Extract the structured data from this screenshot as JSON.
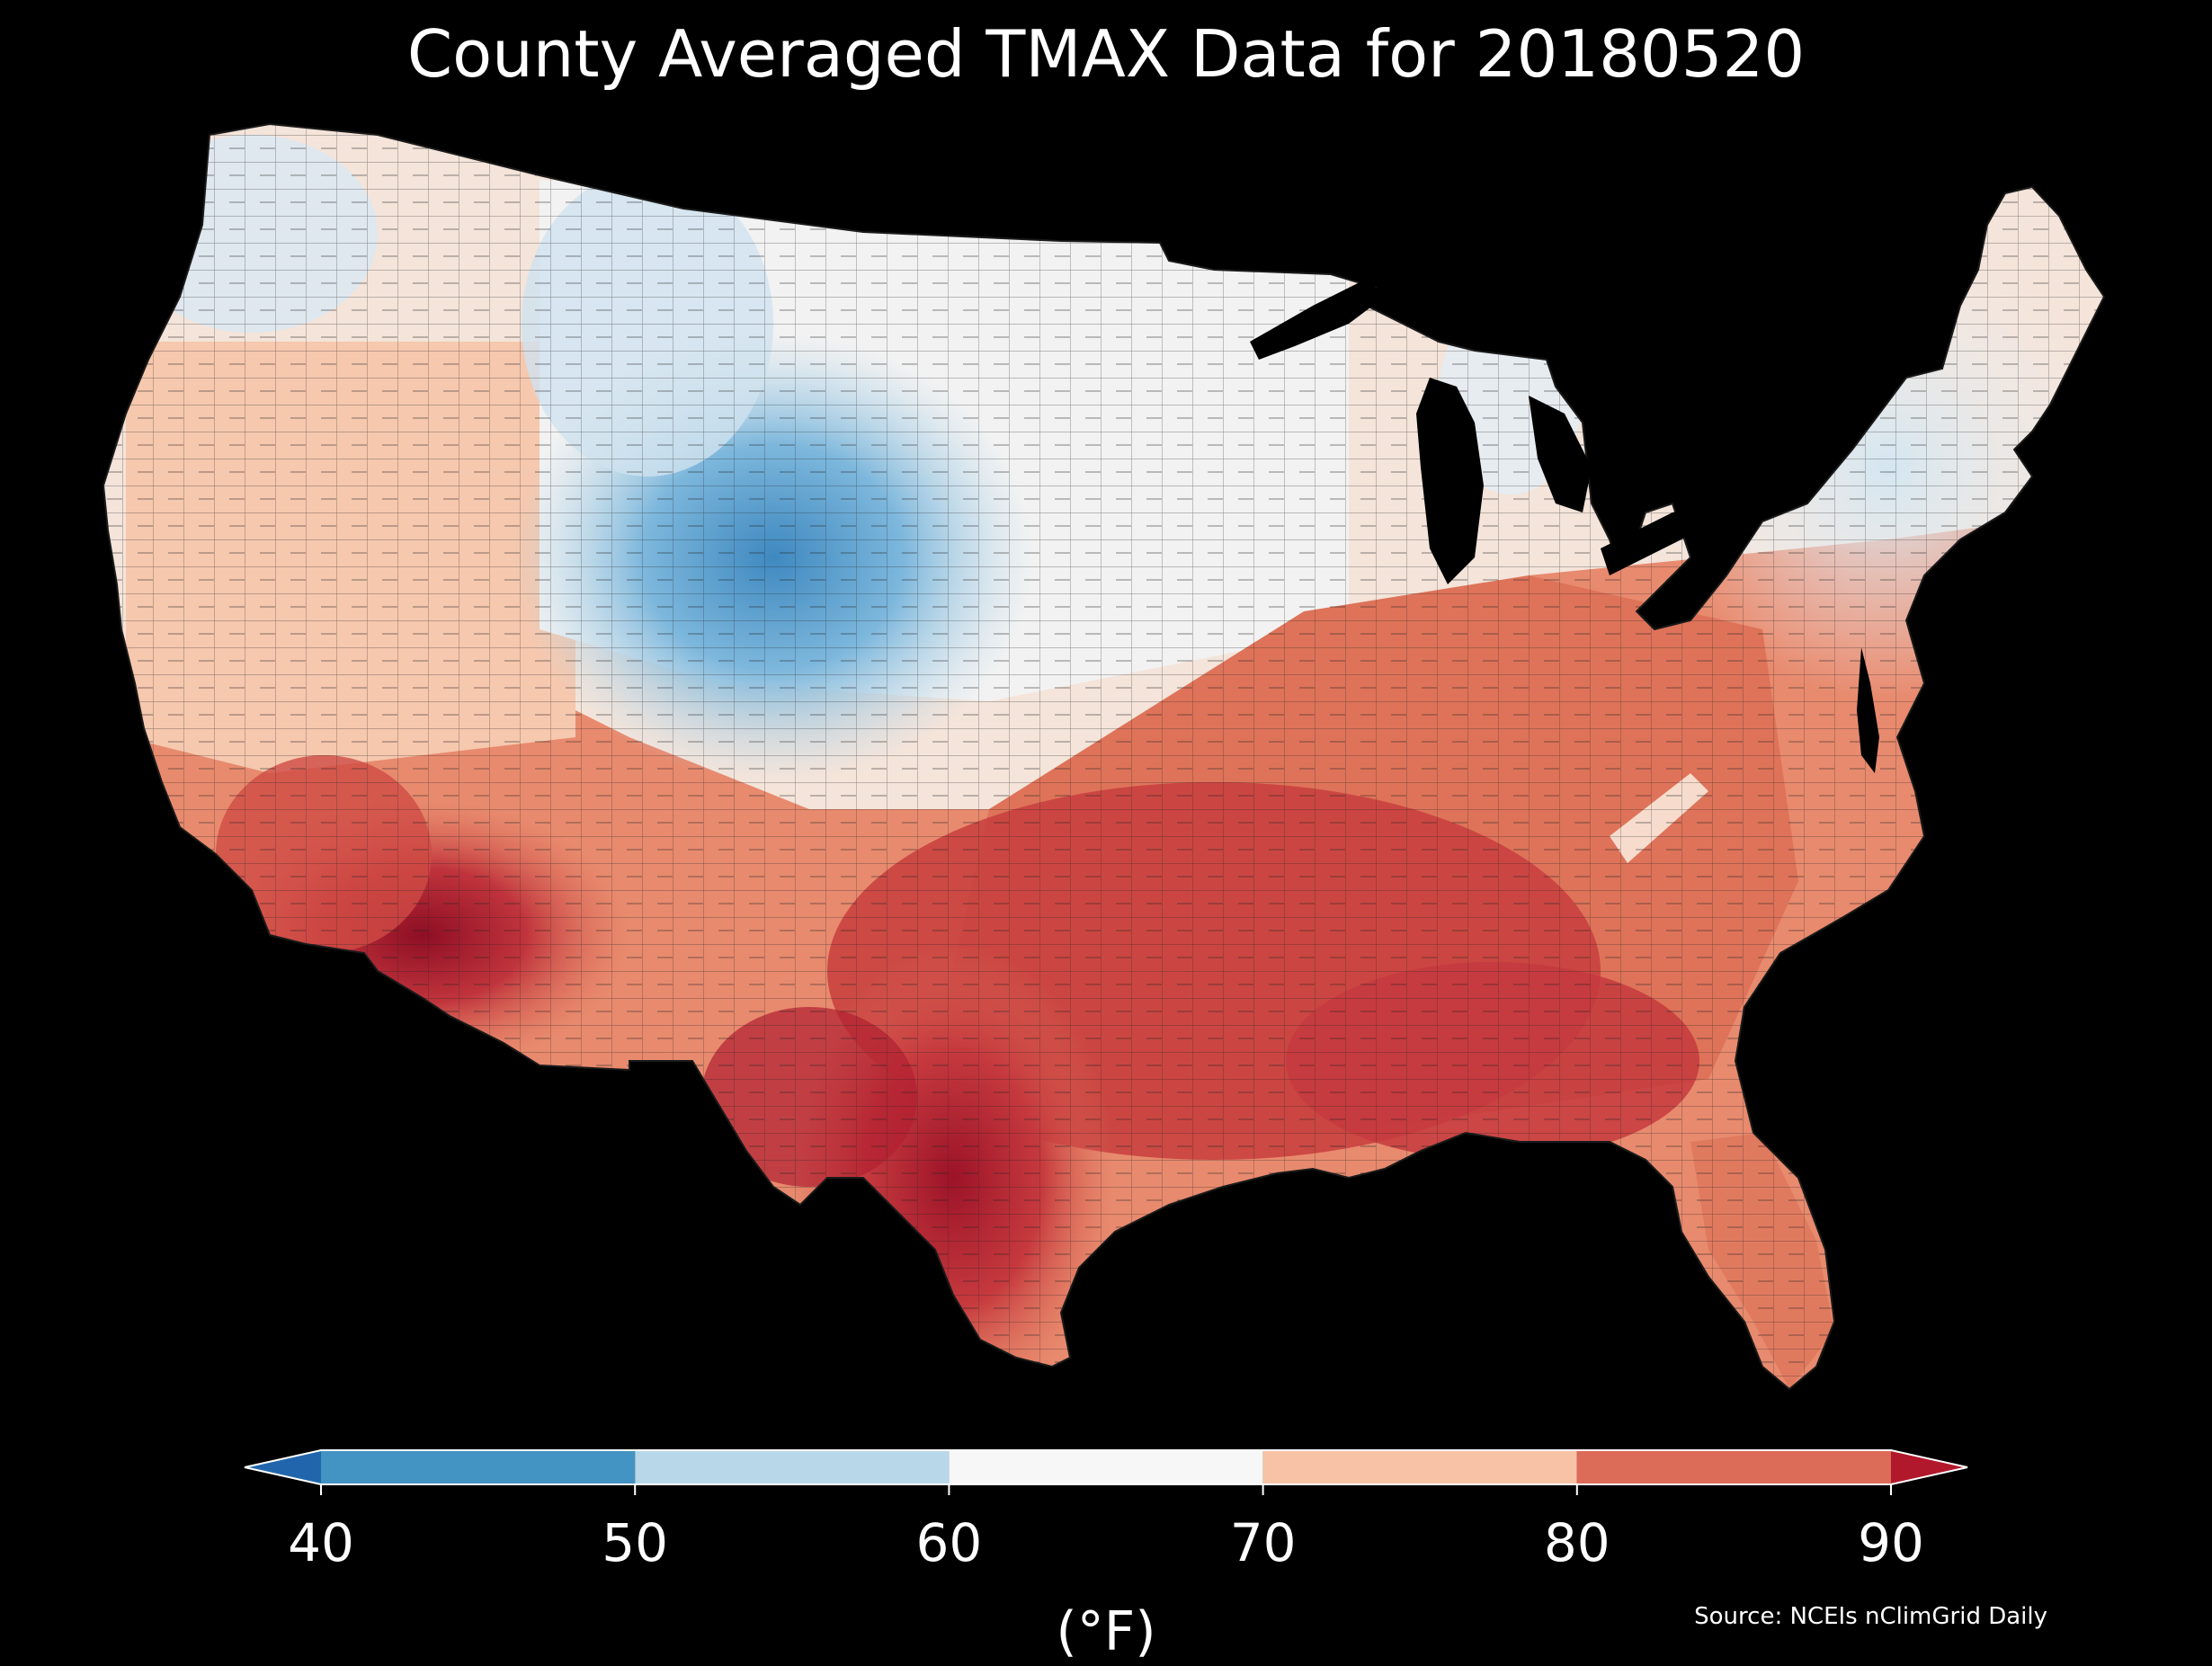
{
  "title": "County Averaged TMAX Data for 20180520",
  "colorbar": {
    "unit": "(°F)",
    "ticks": [
      "40",
      "50",
      "60",
      "70",
      "80",
      "90"
    ],
    "under_color": "#2166ac",
    "over_color": "#b2182b",
    "bins": [
      {
        "range": [
          40,
          50
        ],
        "color": "#4393c3"
      },
      {
        "range": [
          50,
          60
        ],
        "color": "#b8d8ea"
      },
      {
        "range": [
          60,
          70
        ],
        "color": "#f7f7f7"
      },
      {
        "range": [
          70,
          80
        ],
        "color": "#f8c2a6"
      },
      {
        "range": [
          80,
          90
        ],
        "color": "#dc6b58"
      }
    ]
  },
  "source": "Source: NCEIs nClimGrid Daily",
  "map": {
    "region": "Contiguous United States",
    "variable": "TMAX",
    "date": "20180520",
    "regional_pattern": [
      {
        "area": "Pacific Northwest coast",
        "level": "60-70"
      },
      {
        "area": "Northern Rockies / Wyoming / Colorado",
        "level": "40-60"
      },
      {
        "area": "Great Basin / Nevada",
        "level": "60-80"
      },
      {
        "area": "Desert Southwest / Arizona",
        "level": "80-90+"
      },
      {
        "area": "Northern Plains / Upper Midwest",
        "level": "60-70"
      },
      {
        "area": "Texas / Gulf Coast",
        "level": "80-90+"
      },
      {
        "area": "Southeast / Ohio Valley",
        "level": "80-90"
      },
      {
        "area": "Northeast / New England",
        "level": "60-70"
      },
      {
        "area": "Florida",
        "level": "80-90"
      }
    ]
  }
}
